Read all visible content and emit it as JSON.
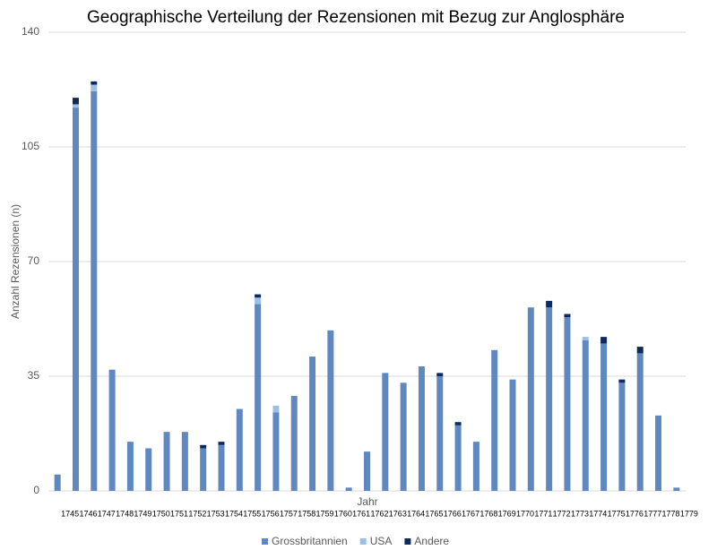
{
  "chart_data": {
    "type": "stacked_bar",
    "title": "Geographische Verteilung der Rezensionen mit Bezug zur Anglosphäre",
    "x_label": "Jahr",
    "y_label": "Anzahl Rezensionen (n)",
    "categories": [
      "1745",
      "1746",
      "1747",
      "1748",
      "1749",
      "1750",
      "1751",
      "1752",
      "1753",
      "1754",
      "1755",
      "1756",
      "1757",
      "1758",
      "1759",
      "1760",
      "1761",
      "1762",
      "1763",
      "1764",
      "1765",
      "1766",
      "1767",
      "1768",
      "1769",
      "1770",
      "1771",
      "1772",
      "1773",
      "1774",
      "1775",
      "1776",
      "1777",
      "1778",
      "1779"
    ],
    "series": [
      {
        "name": "Grossbritannien",
        "color": "#5f87c0",
        "values": [
          5,
          117,
          122,
          37,
          15,
          13,
          18,
          18,
          13,
          14,
          25,
          57,
          24,
          29,
          41,
          49,
          1,
          12,
          36,
          33,
          38,
          35,
          20,
          15,
          43,
          34,
          56,
          56,
          53,
          46,
          45,
          33,
          42,
          23,
          1
        ]
      },
      {
        "name": "USA",
        "color": "#9cc0e4",
        "values": [
          0,
          1,
          2,
          0,
          0,
          0,
          0,
          0,
          0,
          0,
          0,
          2,
          2,
          0,
          0,
          0,
          0,
          0,
          0,
          0,
          0,
          0,
          0,
          0,
          0,
          0,
          0,
          0,
          0,
          1,
          0,
          0,
          0,
          0,
          0
        ]
      },
      {
        "name": "Andere",
        "color": "#0e2a5c",
        "values": [
          0,
          2,
          1,
          0,
          0,
          0,
          0,
          0,
          1,
          1,
          0,
          1,
          0,
          0,
          0,
          0,
          0,
          0,
          0,
          0,
          0,
          1,
          1,
          0,
          0,
          0,
          0,
          2,
          1,
          0,
          2,
          1,
          2,
          0,
          0
        ]
      }
    ],
    "ylim": [
      0,
      140
    ],
    "yticks": [
      0,
      35,
      70,
      105,
      140
    ],
    "grid": true,
    "legend": "bottom"
  }
}
